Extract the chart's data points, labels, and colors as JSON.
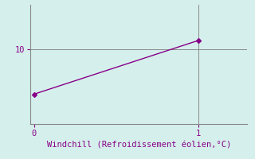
{
  "x": [
    0,
    1
  ],
  "y": [
    8.5,
    10.3
  ],
  "line_color": "#880088",
  "marker": "D",
  "marker_size": 3,
  "bg_color": "#d5f0ec",
  "xlabel": "Windchill (Refroidissement éolien,°C)",
  "xlabel_color": "#880088",
  "xlabel_fontsize": 7.5,
  "tick_color": "#880088",
  "tick_fontsize": 7.5,
  "xlim": [
    -0.02,
    1.3
  ],
  "ylim": [
    7.5,
    11.5
  ],
  "xticks": [
    0,
    1
  ],
  "yticks": [
    10
  ],
  "grid_color": "#888888",
  "spine_color": "#888888",
  "linewidth": 1.0
}
